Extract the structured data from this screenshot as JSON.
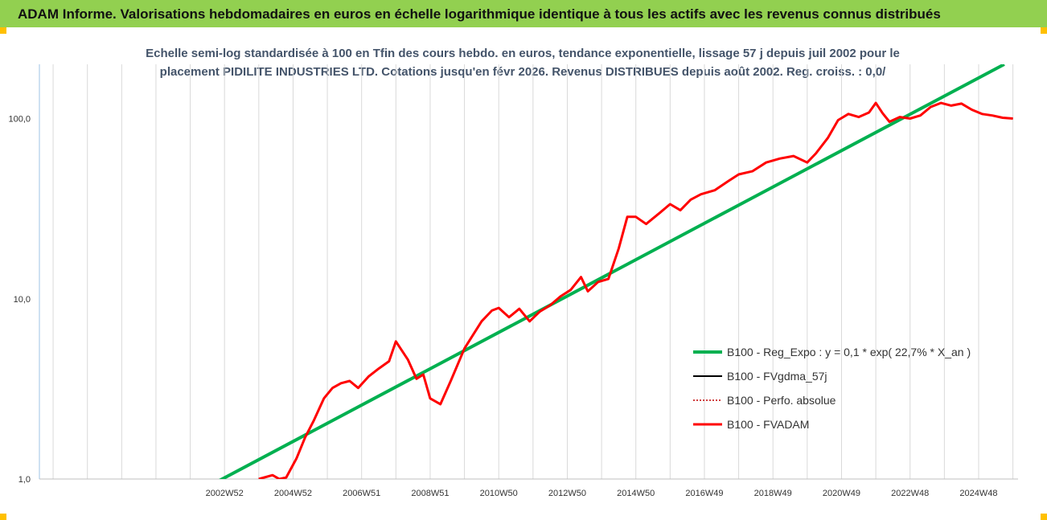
{
  "header": {
    "title": "ADAM Informe. Valorisations hebdomadaires en euros en échelle logarithmique identique à tous les actifs avec les revenus connus distribués"
  },
  "colors": {
    "banner": "#92d050",
    "corner": "#ffc000",
    "regression": "#00b050",
    "smoothed": "#000000",
    "absolute": "#c00000",
    "fvadam": "#ff0000"
  },
  "chart_data": {
    "type": "line",
    "title_line1": "Echelle semi-log standardisée à 100 en Tfin des cours hebdo. en euros, tendance exponentielle, lissage 57 j depuis juil 2002 pour le",
    "title_line2": "placement PIDILITE INDUSTRIES LTD. Cotations jusqu'en févr 2026. Revenus DISTRIBUES depuis août 2002. Reg. croiss. : 0,0/",
    "y_scale": "log",
    "ylim": [
      1,
      200
    ],
    "y_ticks": [
      1,
      10,
      100
    ],
    "y_tick_labels": [
      "1,0",
      "10,0",
      "100,0"
    ],
    "x_tick_labels": [
      "2002W52",
      "2004W52",
      "2006W51",
      "2008W51",
      "2010W50",
      "2012W50",
      "2014W50",
      "2016W49",
      "2018W49",
      "2020W49",
      "2022W48",
      "2024W48"
    ],
    "x_tick_years": [
      2003,
      2005,
      2007,
      2009,
      2011,
      2013,
      2015,
      2017,
      2019,
      2021,
      2023,
      2025
    ],
    "xlim_years": [
      1997.6,
      2026.15
    ],
    "grid": "vertical",
    "legend_position": "bottom-right",
    "legend": [
      "B100 - Reg_Expo : y = 0,1 * exp( 22,7% *  X_an )",
      "B100 - FVgdma_57j",
      "B100 - Perfo. absolue",
      "B100 - FVADAM"
    ],
    "series": [
      {
        "name": "B100 - Reg_Expo : y = 0,1 * exp( 22,7% *  X_an )",
        "style": "regression",
        "x": [
          2002.8,
          2025.75
        ],
        "y": [
          0.97,
          200
        ]
      },
      {
        "name": "B100 - FVADAM",
        "style": "fvadam",
        "x": [
          2004.0,
          2004.4,
          2004.6,
          2004.8,
          2005.1,
          2005.35,
          2005.6,
          2005.9,
          2006.15,
          2006.4,
          2006.65,
          2006.9,
          2007.2,
          2007.5,
          2007.8,
          2008.0,
          2008.35,
          2008.6,
          2008.8,
          2009.0,
          2009.3,
          2009.6,
          2010.0,
          2010.5,
          2010.8,
          2011.0,
          2011.3,
          2011.6,
          2011.9,
          2012.2,
          2012.5,
          2012.8,
          2013.1,
          2013.4,
          2013.6,
          2013.9,
          2014.2,
          2014.5,
          2014.75,
          2015.0,
          2015.3,
          2015.7,
          2016.0,
          2016.3,
          2016.6,
          2016.9,
          2017.3,
          2017.7,
          2018.0,
          2018.4,
          2018.8,
          2019.2,
          2019.6,
          2020.0,
          2020.25,
          2020.6,
          2020.9,
          2021.2,
          2021.5,
          2021.8,
          2022.0,
          2022.2,
          2022.4,
          2022.7,
          2023.0,
          2023.3,
          2023.6,
          2023.9,
          2024.2,
          2024.5,
          2024.8,
          2025.1,
          2025.4,
          2025.7,
          2026.0
        ],
        "y": [
          1.0,
          1.05,
          1.0,
          1.02,
          1.3,
          1.7,
          2.1,
          2.8,
          3.2,
          3.4,
          3.5,
          3.2,
          3.7,
          4.1,
          4.5,
          5.8,
          4.6,
          3.6,
          3.8,
          2.8,
          2.6,
          3.5,
          5.3,
          7.5,
          8.6,
          8.9,
          7.9,
          8.8,
          7.5,
          8.5,
          9.2,
          10.3,
          11.2,
          13.2,
          11.0,
          12.4,
          12.9,
          19.0,
          28.5,
          28.5,
          26.0,
          30.0,
          33.5,
          31.0,
          35.5,
          38.0,
          40.0,
          45.0,
          49.0,
          51.0,
          57.0,
          60.0,
          62.0,
          57.0,
          64.0,
          78.0,
          98.0,
          106.0,
          102.0,
          108.0,
          122.0,
          107.0,
          96.0,
          102.0,
          100.0,
          104.0,
          116.0,
          122.0,
          118.0,
          121.0,
          112.0,
          106.0,
          104.0,
          101.0,
          100.0
        ]
      }
    ]
  }
}
